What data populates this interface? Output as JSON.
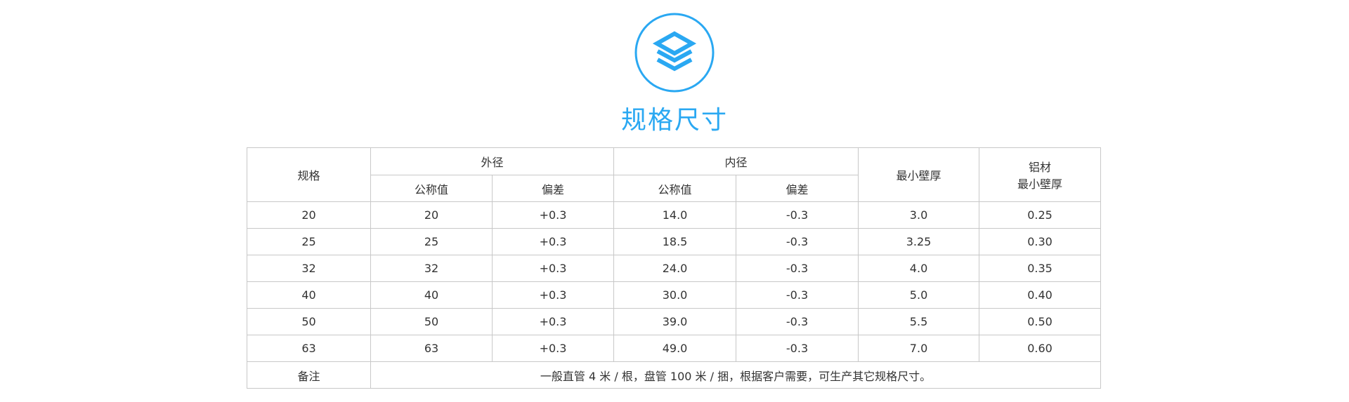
{
  "section": {
    "title": "规格尺寸",
    "icon": "layers-icon",
    "accent": "#2aa8f2"
  },
  "table": {
    "headers": {
      "spec": "规格",
      "od": "外径",
      "id": "内径",
      "wall": "最小壁厚",
      "al_line1": "铝材",
      "al_line2": "最小壁厚",
      "nominal": "公称值",
      "deviation": "偏差"
    },
    "rows": [
      [
        "20",
        "20",
        "+0.3",
        "14.0",
        "-0.3",
        "3.0",
        "0.25"
      ],
      [
        "25",
        "25",
        "+0.3",
        "18.5",
        "-0.3",
        "3.25",
        "0.30"
      ],
      [
        "32",
        "32",
        "+0.3",
        "24.0",
        "-0.3",
        "4.0",
        "0.35"
      ],
      [
        "40",
        "40",
        "+0.3",
        "30.0",
        "-0.3",
        "5.0",
        "0.40"
      ],
      [
        "50",
        "50",
        "+0.3",
        "39.0",
        "-0.3",
        "5.5",
        "0.50"
      ],
      [
        "63",
        "63",
        "+0.3",
        "49.0",
        "-0.3",
        "7.0",
        "0.60"
      ]
    ],
    "note_label": "备注",
    "note": "一般直管 4 米 / 根，盘管 100 米 / 捆，根据客户需要，可生产其它规格尺寸。"
  }
}
